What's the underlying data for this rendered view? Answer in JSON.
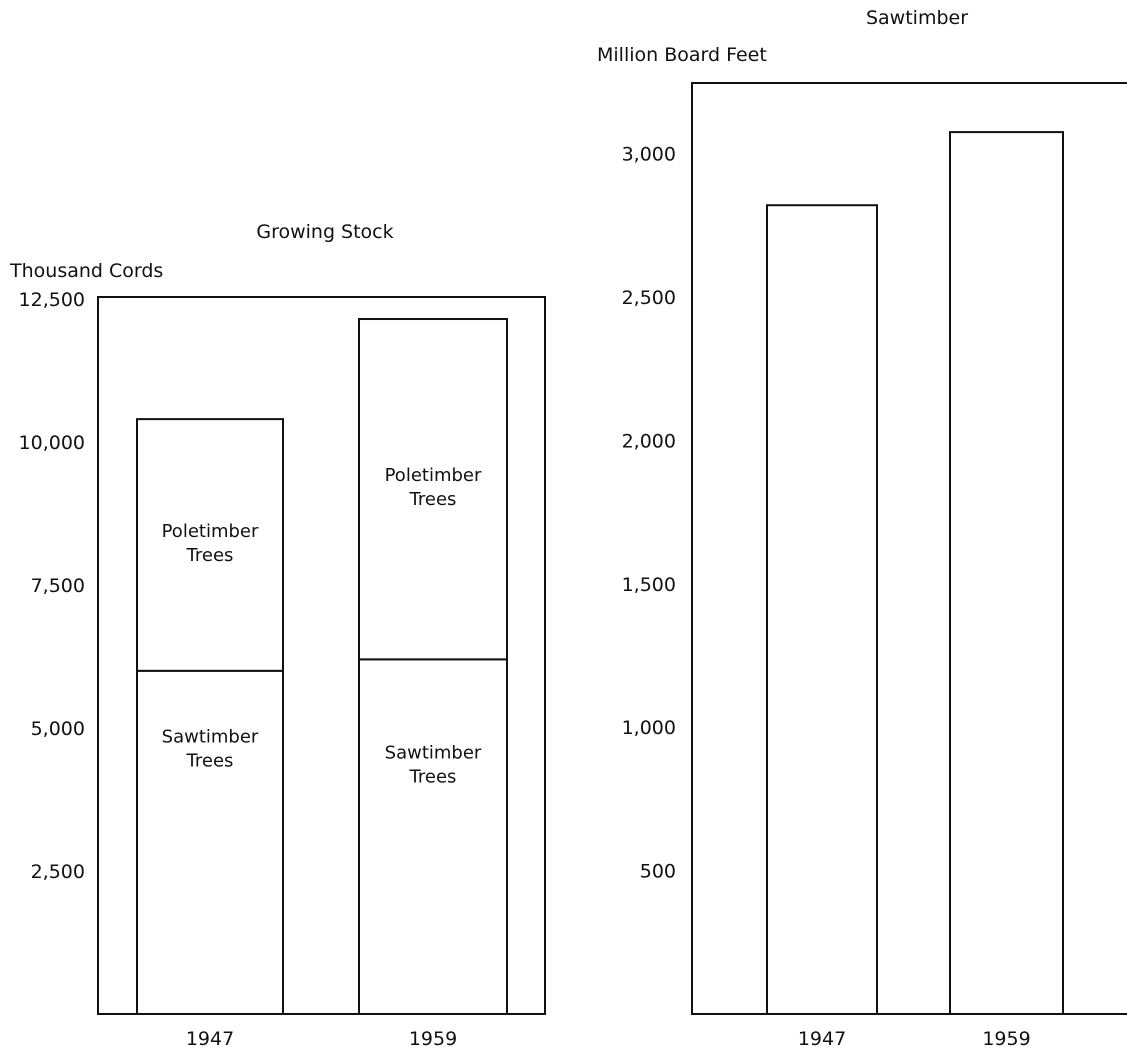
{
  "chart_data": [
    {
      "type": "bar",
      "stacked": true,
      "title": "Growing Stock",
      "ylabel": "Thousand Cords",
      "xlabel": "",
      "categories": [
        "1947",
        "1959"
      ],
      "series": [
        {
          "name": "Sawtimber Trees",
          "values": [
            6000,
            6200
          ]
        },
        {
          "name": "Poletimber Trees",
          "values": [
            4400,
            5950
          ]
        }
      ],
      "ylim": [
        0,
        12500
      ],
      "yticks": [
        "2,500",
        "5,000",
        "7,500",
        "10,000",
        "12,500"
      ],
      "ytick_values": [
        2500,
        5000,
        7500,
        10000,
        12500
      ],
      "segment_labels": [
        {
          "line1": "Poletimber",
          "line2": "Trees"
        },
        {
          "line1": "Sawtimber",
          "line2": "Trees"
        }
      ],
      "grid": false,
      "legend": "none"
    },
    {
      "type": "bar",
      "title": "Sawtimber",
      "ylabel": "Million Board Feet",
      "xlabel": "",
      "categories": [
        "1947",
        "1959"
      ],
      "values": [
        2820,
        3075
      ],
      "ylim": [
        0,
        3250
      ],
      "yticks": [
        "500",
        "1,000",
        "1,500",
        "2,000",
        "2,500",
        "3,000"
      ],
      "ytick_values": [
        500,
        1000,
        1500,
        2000,
        2500,
        3000
      ],
      "grid": false,
      "legend": "none"
    }
  ],
  "colors": {
    "ink": "#111111",
    "fill": "#ffffff"
  }
}
